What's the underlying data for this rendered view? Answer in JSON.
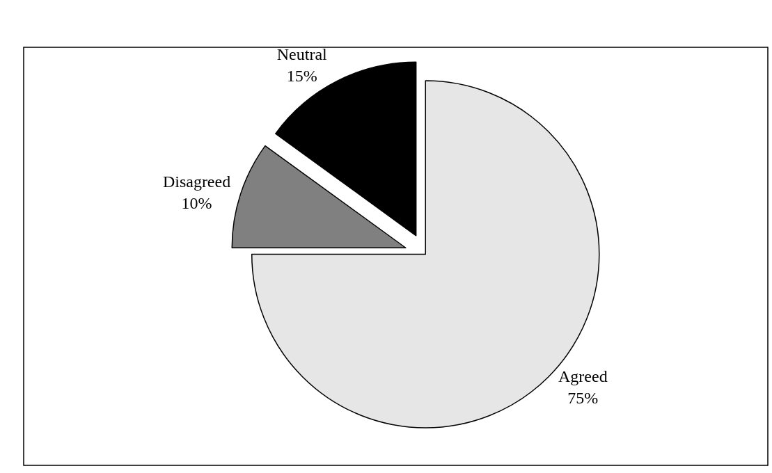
{
  "chart_data": {
    "type": "pie",
    "categories": [
      "Agreed",
      "Disagreed",
      "Neutral"
    ],
    "values": [
      75,
      10,
      15
    ],
    "value_labels": [
      "75%",
      "10%",
      "15%"
    ],
    "colors": [
      "#e6e6e6",
      "#808080",
      "#000000"
    ],
    "legend": false
  }
}
